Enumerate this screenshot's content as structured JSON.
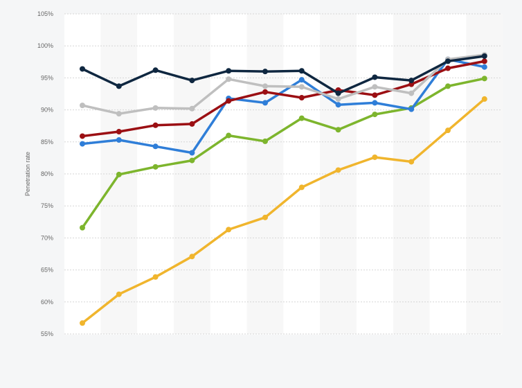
{
  "chart_data": {
    "type": "line",
    "ylabel": "Penetration rate",
    "ylim": [
      55,
      105
    ],
    "yticks": [
      55,
      60,
      65,
      70,
      75,
      80,
      85,
      90,
      95,
      100,
      105
    ],
    "ytick_labels": [
      "55%",
      "60%",
      "65%",
      "70%",
      "75%",
      "80%",
      "85%",
      "90%",
      "95%",
      "100%",
      "105%"
    ],
    "x_count": 12,
    "grid": true,
    "series": [
      {
        "color": "#f0b52d",
        "values": [
          56.7,
          61.2,
          63.9,
          67.1,
          71.3,
          73.2,
          77.9,
          80.6,
          82.6,
          81.9,
          86.8,
          91.7
        ]
      },
      {
        "color": "#7db52d",
        "values": [
          71.6,
          79.9,
          81.1,
          82.1,
          86.0,
          85.1,
          88.7,
          86.9,
          89.3,
          90.3,
          93.7,
          94.9
        ]
      },
      {
        "color": "#2f7ed8",
        "values": [
          84.7,
          85.3,
          84.3,
          83.3,
          91.8,
          91.1,
          94.7,
          90.8,
          91.1,
          90.1,
          97.9,
          96.7
        ]
      },
      {
        "color": "#9b0f13",
        "values": [
          85.9,
          86.6,
          87.6,
          87.8,
          91.4,
          92.8,
          91.9,
          93.1,
          92.3,
          94.0,
          96.5,
          97.6
        ]
      },
      {
        "color": "#bfbfbf",
        "values": [
          90.7,
          89.4,
          90.3,
          90.2,
          94.8,
          93.7,
          93.6,
          91.7,
          93.6,
          92.6,
          97.9,
          98.6
        ]
      },
      {
        "color": "#0f2740",
        "values": [
          96.4,
          93.7,
          96.2,
          94.6,
          96.1,
          96.0,
          96.1,
          92.6,
          95.1,
          94.6,
          97.6,
          98.4
        ]
      }
    ]
  }
}
